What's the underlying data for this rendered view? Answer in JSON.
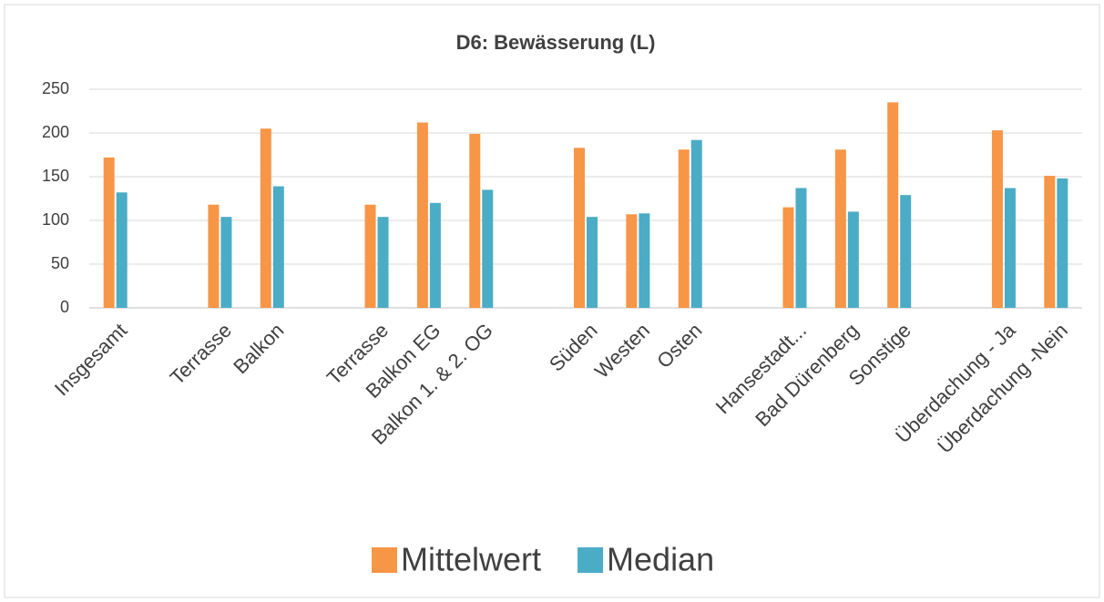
{
  "chart_data": {
    "type": "bar",
    "title": "D6: Bewässerung (L)",
    "categories": [
      "Insgesamt",
      null,
      "Terrasse",
      "Balkon",
      null,
      "Terrasse",
      "Balkon EG",
      "Balkon 1. & 2. OG",
      null,
      "Süden",
      "Westen",
      "Osten",
      null,
      "Hansestadt...",
      "Bad Dürenberg",
      "Sonstige",
      null,
      "Überdachung - Ja",
      "Überdachung -Nein"
    ],
    "series": [
      {
        "name": "Mittelwert",
        "color": "#f79646",
        "values": [
          172,
          null,
          118,
          205,
          null,
          118,
          212,
          199,
          null,
          183,
          107,
          181,
          null,
          115,
          181,
          235,
          null,
          203,
          151
        ]
      },
      {
        "name": "Median",
        "color": "#4bacc6",
        "values": [
          132,
          null,
          104,
          139,
          null,
          104,
          120,
          135,
          null,
          104,
          108,
          192,
          null,
          137,
          110,
          129,
          null,
          137,
          148
        ]
      }
    ],
    "ylim": [
      0,
      250
    ],
    "yticks": [
      0,
      50,
      100,
      150,
      200,
      250
    ],
    "grid": true,
    "legend": "bottom"
  }
}
